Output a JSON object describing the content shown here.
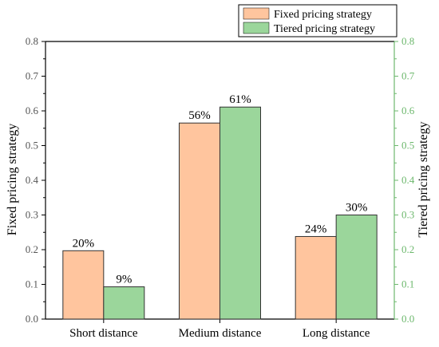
{
  "chart_data": {
    "type": "bar",
    "categories": [
      "Short distance",
      "Medium distance",
      "Long distance"
    ],
    "series": [
      {
        "name": "Fixed pricing strategy",
        "values": [
          0.197,
          0.565,
          0.238
        ],
        "labels": [
          "20%",
          "56%",
          "24%"
        ],
        "color": "#FFC59E"
      },
      {
        "name": "Tiered pricing strategy",
        "values": [
          0.093,
          0.611,
          0.3
        ],
        "labels": [
          "9%",
          "61%",
          "30%"
        ],
        "color": "#9BD69B"
      }
    ],
    "ylabel_left": "Fixed pricing strategy",
    "ylabel_right": "Tiered pricing strategy",
    "ylim": [
      0,
      0.8
    ],
    "yticks": [
      "0.0",
      "0.1",
      "0.2",
      "0.3",
      "0.4",
      "0.5",
      "0.6",
      "0.7",
      "0.8"
    ],
    "left_axis_color": "#000000",
    "right_axis_color": "#6DB86D",
    "grid": false,
    "legend_position": "top-right"
  }
}
